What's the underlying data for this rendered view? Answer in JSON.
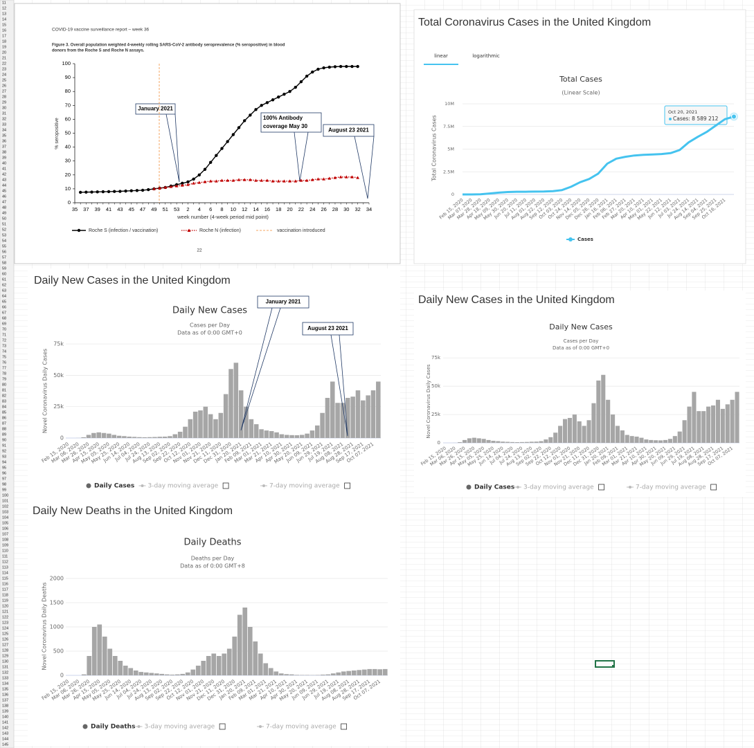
{
  "spreadsheet": {
    "row_numbers": [
      11,
      12,
      13,
      14,
      15,
      16,
      17,
      18,
      19,
      20,
      21,
      22,
      23,
      24,
      25,
      26,
      27,
      28,
      29,
      30,
      31,
      32,
      33,
      34,
      35,
      36,
      37,
      38,
      39,
      40,
      41,
      42,
      43,
      44,
      45,
      46,
      47,
      48,
      49,
      50,
      51,
      52,
      53,
      54,
      55,
      56,
      57,
      58,
      59,
      60,
      61,
      62,
      63,
      64,
      65,
      66,
      67,
      68,
      69,
      70,
      71,
      72,
      73,
      74,
      75,
      76,
      77,
      78,
      79,
      80,
      81,
      82,
      83,
      84,
      85,
      86,
      87,
      88,
      89,
      90,
      91,
      92,
      93,
      94,
      95,
      96,
      97,
      98,
      99,
      100,
      101,
      102,
      103,
      104,
      105,
      106,
      107,
      108,
      109,
      110,
      111,
      112,
      113,
      114,
      115,
      116,
      117,
      118,
      119,
      120,
      121,
      122,
      123,
      124,
      125,
      126,
      127,
      128,
      129,
      130,
      131,
      132,
      133,
      134,
      135,
      136,
      137,
      138,
      139,
      140,
      141,
      142,
      143,
      144,
      145
    ]
  },
  "chart_data": [
    {
      "type": "line",
      "header": "COVID-19 vaccine surveillance report – week 36",
      "title": [
        "Figure 3. Overall population weighted 4-weekly rolling SARS-CoV-2 antibody seroprevalence (% seropositive) in blood",
        "donors from the Roche S and Roche N assays."
      ],
      "ylabel": "% seropositive",
      "xlabel": "week number (4-week period mid point)",
      "page_number": "22",
      "categories": [
        35,
        null,
        37,
        null,
        39,
        null,
        41,
        null,
        43,
        null,
        45,
        null,
        47,
        null,
        49,
        null,
        51,
        null,
        53,
        null,
        2,
        null,
        4,
        null,
        6,
        null,
        8,
        null,
        10,
        null,
        12,
        null,
        14,
        null,
        16,
        null,
        18,
        null,
        20,
        null,
        22,
        null,
        24,
        null,
        26,
        null,
        28,
        null,
        30,
        null,
        32,
        null,
        34
      ],
      "series": [
        {
          "name": "Roche S (infection / vaccination)",
          "color": "#000000",
          "marker": "circle",
          "values": [
            null,
            7.5,
            7.6,
            7.7,
            7.8,
            7.9,
            8,
            8.1,
            8.2,
            8.4,
            8.6,
            8.8,
            9,
            9.4,
            10,
            10.5,
            11,
            12,
            13,
            14,
            15,
            17,
            20,
            24,
            29,
            34,
            39,
            44,
            49,
            54,
            59,
            63,
            67,
            70,
            72,
            74,
            76,
            78,
            80,
            83,
            87,
            91,
            94,
            96,
            97,
            97.5,
            97.8,
            98,
            98,
            98,
            98,
            null,
            null
          ]
        },
        {
          "name": "Roche N (infection)",
          "color": "#c00000",
          "marker": "triangle",
          "values": [
            null,
            null,
            null,
            null,
            null,
            null,
            null,
            null,
            null,
            null,
            null,
            null,
            null,
            null,
            10,
            10.5,
            11,
            11.5,
            12,
            12.5,
            13,
            14,
            14.5,
            15,
            15.5,
            15.5,
            16,
            16,
            16,
            16.5,
            16.5,
            16.5,
            16,
            16,
            16,
            15.5,
            15.5,
            15.5,
            15.5,
            15.5,
            16,
            16,
            16.5,
            17,
            17,
            17.5,
            18,
            18.5,
            18.5,
            18.5,
            18,
            null,
            null
          ]
        }
      ],
      "reference_line": {
        "name": "vaccination introduced",
        "color": "#f4a460"
      },
      "ylim": [
        0,
        100
      ],
      "yticks": [
        0,
        10,
        20,
        30,
        40,
        50,
        60,
        70,
        80,
        90,
        100
      ],
      "grid": false,
      "annotations": [
        {
          "lines": [
            "January 2021"
          ]
        },
        {
          "lines": [
            "100% Antibody",
            "coverage May 30"
          ]
        },
        {
          "lines": [
            "August 23 2021"
          ]
        }
      ]
    },
    {
      "type": "line",
      "section_title": "Total Coronavirus Cases in the United Kingdom",
      "tabs": [
        "linear",
        "logarithmic"
      ],
      "title": "Total Cases",
      "subtitle": "(Linear Scale)",
      "ylabel": "Total Coronavirus Cases",
      "categories": [
        "Feb 15, 2020",
        "Mar 07, 2020",
        "Mar 28, 2020",
        "Apr 18, 2020",
        "May 09, 2020",
        "May 30, 2020",
        "Jun 20, 2020",
        "Jul 11, 2020",
        "Aug 01, 2020",
        "Aug 22, 2020",
        "Sep 12, 2020",
        "Oct 03, 2020",
        "Oct 24, 2020",
        "Nov 14, 2020",
        "Dec 05, 2020",
        "Dec 26, 2020",
        "Jan 16, 2021",
        "Feb 06, 2021",
        "Feb 27, 2021",
        "Mar 20, 2021",
        "Apr 10, 2021",
        "May 01, 2021",
        "May 22, 2021",
        "Jun 12, 2021",
        "Jul 03, 2021",
        "Jul 24, 2021",
        "Aug 14, 2021",
        "Sep 04, 2021",
        "Sep 25, 2021",
        "Oct 16, 2021",
        null
      ],
      "series": [
        {
          "name": "Cases",
          "color": "#45c3ef",
          "marker": "none",
          "values": [
            0,
            0,
            20000,
            110000,
            200000,
            270000,
            300000,
            300000,
            310000,
            330000,
            370000,
            480000,
            850000,
            1350000,
            1700000,
            2300000,
            3400000,
            3950000,
            4150000,
            4300000,
            4370000,
            4410000,
            4460000,
            4560000,
            4900000,
            5750000,
            6350000,
            6900000,
            7600000,
            8300000,
            8589212
          ]
        }
      ],
      "tooltip": {
        "date": "Oct 20, 2021",
        "label": "Cases: 8 589 212"
      },
      "ylim": [
        0,
        10000000
      ],
      "yticks": [
        0,
        {
          "value": 2500000,
          "label": "2.5M"
        },
        {
          "value": 5000000,
          "label": "5M"
        },
        {
          "value": 7500000,
          "label": "7.5M"
        },
        {
          "value": 10000000,
          "label": "10M"
        }
      ],
      "grid": true
    },
    {
      "type": "bar",
      "section_title": "Daily New Cases in the United Kingdom",
      "title": "Daily New Cases",
      "subtitle": [
        "Cases per Day",
        "Data as of 0:00 GMT+0"
      ],
      "ylabel": "Novel Coronavirus Daily Cases",
      "categories": [
        "Feb 15, 2020",
        null,
        "Mar 06, 2020",
        null,
        "Mar 26, 2020",
        null,
        "Apr 15, 2020",
        null,
        "May 05, 2020",
        null,
        "May 25, 2020",
        null,
        "Jun 14, 2020",
        null,
        "Jul 04, 2020",
        null,
        "Jul 24, 2020",
        null,
        "Aug 13, 2020",
        null,
        "Sep 02, 2020",
        null,
        "Sep 22, 2020",
        null,
        "Oct 12, 2020",
        null,
        "Nov 01, 2020",
        null,
        "Nov 21, 2020",
        null,
        "Dec 11, 2020",
        null,
        "Dec 31, 2020",
        null,
        "Jan 20, 2021",
        null,
        "Feb 09, 2021",
        null,
        "Mar 01, 2021",
        null,
        "Mar 21, 2021",
        null,
        "Apr 10, 2021",
        null,
        "Apr 30, 2021",
        null,
        "May 20, 2021",
        null,
        "Jun 09, 2021",
        null,
        "Jun 29, 2021",
        null,
        "Jul 19, 2021",
        null,
        "Aug 08, 2021",
        null,
        "Aug 28, 2021",
        null,
        "Sep 17, 2021",
        null,
        "Oct 07, 2021",
        null
      ],
      "series": [
        {
          "name": "Daily Cases",
          "color": "#a6a6a6",
          "values": [
            0,
            0,
            50,
            600,
            2500,
            4000,
            4500,
            4000,
            3500,
            2500,
            1800,
            1500,
            1100,
            900,
            700,
            600,
            700,
            800,
            1000,
            1100,
            1500,
            3000,
            5000,
            9000,
            15000,
            21000,
            22000,
            25000,
            19000,
            15000,
            20000,
            35000,
            55000,
            60000,
            38000,
            25000,
            15000,
            11000,
            7000,
            6000,
            5500,
            4500,
            3000,
            2500,
            2300,
            2200,
            2500,
            3500,
            6000,
            10000,
            20000,
            32000,
            45000,
            28000,
            28000,
            32000,
            33000,
            38000,
            30000,
            34000,
            38000,
            45000
          ]
        }
      ],
      "legend_extra": [
        "3-day moving average",
        "7-day moving average"
      ],
      "ylim": [
        0,
        80000
      ],
      "yticks": [
        0,
        {
          "value": 25000,
          "label": "25k"
        },
        {
          "value": 50000,
          "label": "50k"
        },
        {
          "value": 75000,
          "label": "75k"
        }
      ],
      "grid": true,
      "annotations": [
        {
          "lines": [
            "January 2021"
          ]
        },
        {
          "lines": [
            "August 23 2021"
          ]
        }
      ]
    },
    {
      "type": "bar",
      "section_title": "Daily New Cases in the United Kingdom",
      "title": "Daily New Cases",
      "subtitle": [
        "Cases per Day",
        "Data as of 0:00 GMT+0"
      ],
      "ylabel": "Novel Coronavirus Daily Cases",
      "categories": [
        "Feb 15, 2020",
        null,
        "Mar 06, 2020",
        null,
        "Mar 26, 2020",
        null,
        "Apr 15, 2020",
        null,
        "May 05, 2020",
        null,
        "May 25, 2020",
        null,
        "Jun 14, 2020",
        null,
        "Jul 04, 2020",
        null,
        "Jul 24, 2020",
        null,
        "Aug 13, 2020",
        null,
        "Sep 02, 2020",
        null,
        "Sep 22, 2020",
        null,
        "Oct 12, 2020",
        null,
        "Nov 01, 2020",
        null,
        "Nov 21, 2020",
        null,
        "Dec 11, 2020",
        null,
        "Dec 31, 2020",
        null,
        "Jan 20, 2021",
        null,
        "Feb 09, 2021",
        null,
        "Mar 01, 2021",
        null,
        "Mar 21, 2021",
        null,
        "Apr 10, 2021",
        null,
        "Apr 30, 2021",
        null,
        "May 20, 2021",
        null,
        "Jun 09, 2021",
        null,
        "Jun 29, 2021",
        null,
        "Jul 19, 2021",
        null,
        "Aug 08, 2021",
        null,
        "Aug 28, 2021",
        null,
        "Sep 17, 2021",
        null,
        "Oct 07, 2021",
        null
      ],
      "series": [
        {
          "name": "Daily Cases",
          "color": "#a6a6a6",
          "values": [
            0,
            0,
            50,
            600,
            2500,
            4000,
            4500,
            4000,
            3500,
            2500,
            1800,
            1500,
            1100,
            900,
            700,
            600,
            700,
            800,
            1000,
            1100,
            1500,
            3000,
            5000,
            9000,
            15000,
            21000,
            22000,
            25000,
            19000,
            15000,
            20000,
            35000,
            55000,
            60000,
            38000,
            25000,
            15000,
            11000,
            7000,
            6000,
            5500,
            4500,
            3000,
            2500,
            2300,
            2200,
            2500,
            3500,
            6000,
            10000,
            20000,
            32000,
            45000,
            28000,
            28000,
            32000,
            33000,
            38000,
            30000,
            34000,
            38000,
            45000
          ]
        }
      ],
      "legend_extra": [
        "3-day moving average",
        "7-day moving average"
      ],
      "ylim": [
        0,
        80000
      ],
      "yticks": [
        0,
        {
          "value": 25000,
          "label": "25k"
        },
        {
          "value": 50000,
          "label": "50k"
        },
        {
          "value": 75000,
          "label": "75k"
        }
      ],
      "grid": true
    },
    {
      "type": "bar",
      "section_title": "Daily New Deaths in the United Kingdom",
      "title": "Daily Deaths",
      "subtitle": [
        "Deaths per Day",
        "Data as of 0:00 GMT+8"
      ],
      "ylabel": "Novel Coronavirus Daily Deaths",
      "categories": [
        "Feb 15, 2020",
        null,
        "Mar 06, 2020",
        null,
        "Mar 26, 2020",
        null,
        "Apr 15, 2020",
        null,
        "May 05, 2020",
        null,
        "May 25, 2020",
        null,
        "Jun 14, 2020",
        null,
        "Jul 04, 2020",
        null,
        "Jul 24, 2020",
        null,
        "Aug 13, 2020",
        null,
        "Sep 02, 2020",
        null,
        "Sep 22, 2020",
        null,
        "Oct 12, 2020",
        null,
        "Nov 01, 2020",
        null,
        "Nov 21, 2020",
        null,
        "Dec 11, 2020",
        null,
        "Dec 31, 2020",
        null,
        "Jan 20, 2021",
        null,
        "Feb 09, 2021",
        null,
        "Mar 01, 2021",
        null,
        "Mar 21, 2021",
        null,
        "Apr 10, 2021",
        null,
        "Apr 30, 2021",
        null,
        "May 20, 2021",
        null,
        "Jun 09, 2021",
        null,
        "Jun 29, 2021",
        null,
        "Jul 19, 2021",
        null,
        "Aug 08, 2021",
        null,
        "Aug 28, 2021",
        null,
        "Sep 17, 2021",
        null,
        "Oct 07, 2021",
        null
      ],
      "series": [
        {
          "name": "Daily Deaths",
          "color": "#a6a6a6",
          "values": [
            0,
            0,
            0,
            20,
            400,
            1000,
            1050,
            800,
            550,
            400,
            300,
            200,
            150,
            100,
            70,
            60,
            50,
            40,
            30,
            20,
            15,
            20,
            30,
            60,
            120,
            200,
            300,
            400,
            450,
            400,
            450,
            550,
            800,
            1250,
            1400,
            1000,
            700,
            450,
            250,
            150,
            80,
            40,
            25,
            20,
            10,
            8,
            8,
            6,
            8,
            15,
            20,
            40,
            60,
            80,
            90,
            100,
            110,
            120,
            130,
            130,
            125,
            130
          ]
        }
      ],
      "legend_extra": [
        "3-day moving average",
        "7-day moving average"
      ],
      "ylim": [
        0,
        2000
      ],
      "yticks": [
        0,
        500,
        1000,
        1500,
        2000
      ],
      "grid": true
    }
  ]
}
